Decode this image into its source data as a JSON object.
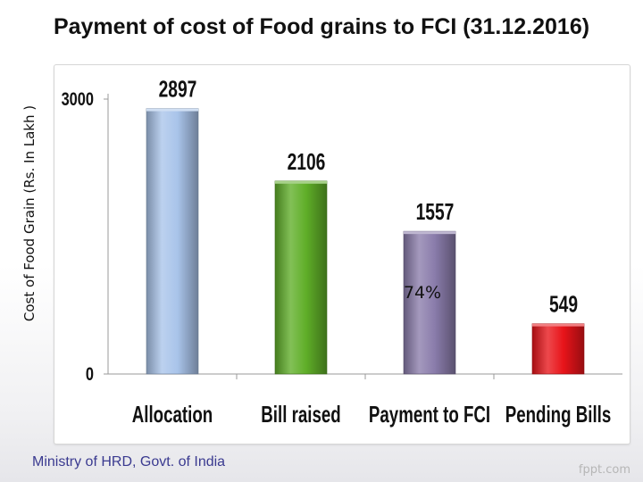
{
  "slide_title": "Payment of cost of Food grains to FCI (31.12.2016)",
  "footer": "Ministry of HRD, Govt. of India",
  "watermark": "fppt.com",
  "chart_data": {
    "type": "bar",
    "categories": [
      "Allocation",
      "Bill raised",
      "Payment to FCI",
      "Pending Bills"
    ],
    "values": [
      2897,
      2106,
      1557,
      549
    ],
    "title": "Payment of cost of Food grains to FCI (31.12.2016)",
    "xlabel": "",
    "ylabel": "Cost of Food Grain (Rs. In Lakh )",
    "ylim": [
      0,
      3000
    ],
    "yticks": [
      0,
      3000
    ],
    "grid": false,
    "legend": "none",
    "data_labels": [
      "2897",
      "2106",
      "1557",
      "549"
    ],
    "annotations": [
      {
        "category": "Payment to FCI",
        "text": "74%"
      }
    ],
    "colors": [
      "#a9c4ea",
      "#5fae28",
      "#8a7cab",
      "#e8141a"
    ]
  }
}
